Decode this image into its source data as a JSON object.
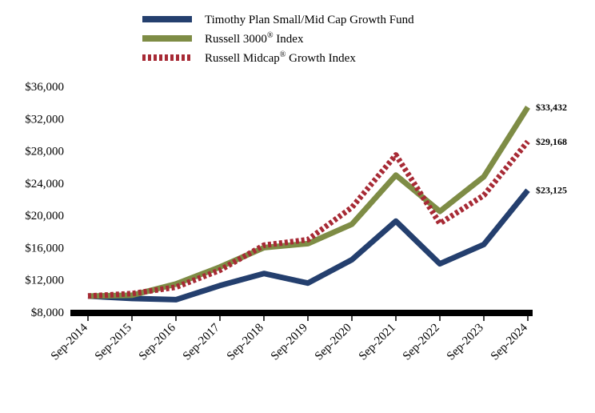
{
  "chart_data": {
    "type": "line",
    "title": "",
    "xlabel": "",
    "ylabel": "",
    "categories": [
      "Sep-2014",
      "Sep-2015",
      "Sep-2016",
      "Sep-2017",
      "Sep-2018",
      "Sep-2019",
      "Sep-2020",
      "Sep-2021",
      "Sep-2022",
      "Sep-2023",
      "Sep-2024"
    ],
    "ylim": [
      8000,
      36000
    ],
    "yticks": [
      "$8,000",
      "$12,000",
      "$16,000",
      "$20,000",
      "$24,000",
      "$28,000",
      "$32,000",
      "$36,000"
    ],
    "legend_position": "top",
    "grid": false,
    "series": [
      {
        "name": "Timothy Plan Small/Mid Cap Growth Fund",
        "name_super": "",
        "name_suffix": "",
        "color": "#243F6E",
        "style": "solid",
        "values": [
          10000,
          9700,
          9550,
          11300,
          12800,
          11600,
          14500,
          19300,
          14000,
          16400,
          23125
        ],
        "end_label": "$23,125"
      },
      {
        "name": "Russell 3000",
        "name_super": "®",
        "name_suffix": " Index",
        "color": "#7E8C45",
        "style": "solid",
        "values": [
          10000,
          10100,
          11500,
          13600,
          16000,
          16500,
          18900,
          25000,
          20500,
          24800,
          33432
        ],
        "end_label": "$33,432"
      },
      {
        "name": "Russell Midcap",
        "name_super": "®",
        "name_suffix": " Growth Index",
        "color": "#A72A35",
        "style": "dotted",
        "values": [
          10000,
          10300,
          11100,
          13200,
          16300,
          17000,
          21000,
          27500,
          19000,
          22500,
          29168
        ],
        "end_label": "$29,168"
      }
    ]
  }
}
